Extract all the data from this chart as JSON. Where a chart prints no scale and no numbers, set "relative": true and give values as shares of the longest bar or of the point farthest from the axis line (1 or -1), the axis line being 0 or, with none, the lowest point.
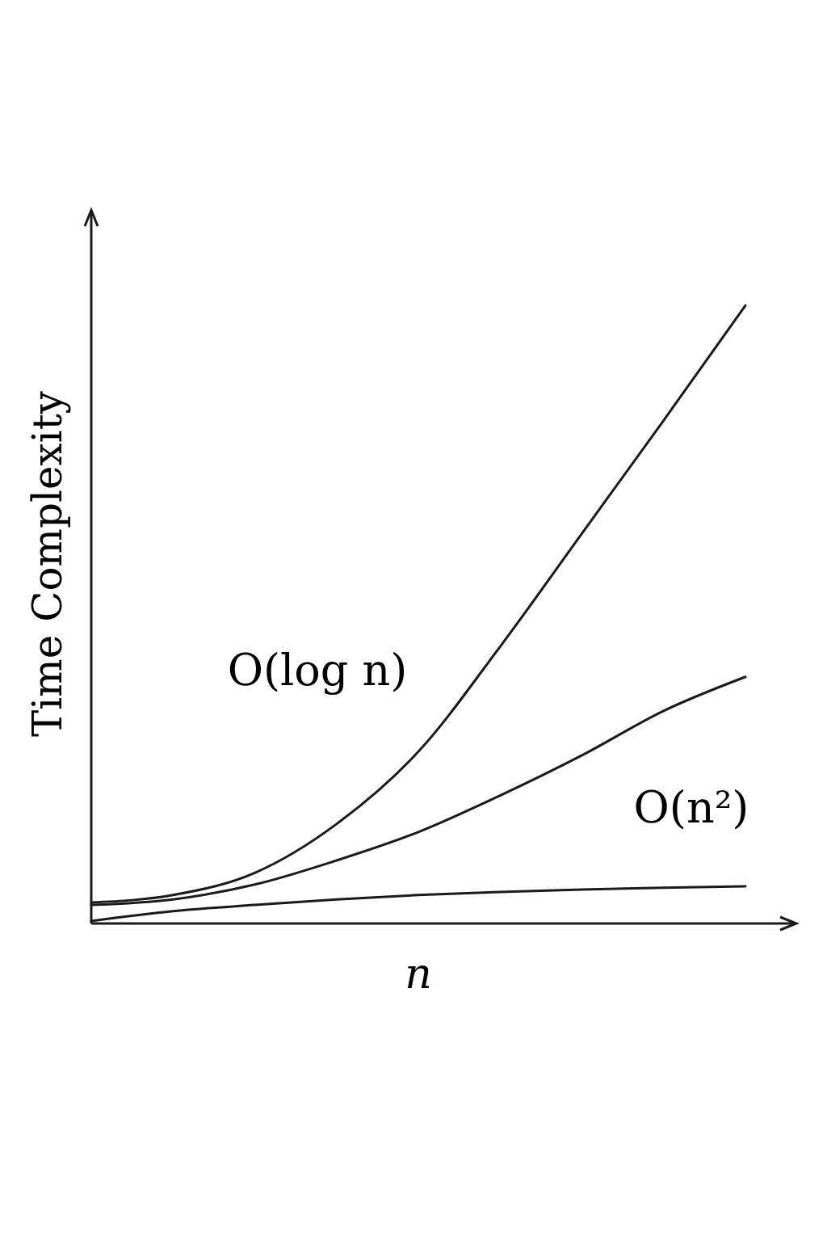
{
  "chart_data": {
    "type": "line",
    "relative": true,
    "ylabel": "Time Complexity",
    "xlabel": "n",
    "categories": [
      null,
      null,
      null,
      null,
      null,
      null,
      null,
      null,
      null
    ],
    "series": [
      {
        "color": "#1a1a1a",
        "values": [
          0.034,
          0.046,
          0.082,
          0.161,
          0.278,
          0.448,
          0.631,
          0.814,
          1
        ]
      },
      {
        "color": "#1a1a1a",
        "values": [
          0.03,
          0.039,
          0.063,
          0.102,
          0.148,
          0.207,
          0.272,
          0.344,
          0.399
        ]
      },
      {
        "color": "#1a1a1a",
        "values": [
          0.004,
          0.02,
          0.03,
          0.039,
          0.046,
          0.051,
          0.055,
          0.058,
          0.06
        ]
      }
    ],
    "annotations": [
      "O(log n)",
      "O(n²)"
    ]
  }
}
